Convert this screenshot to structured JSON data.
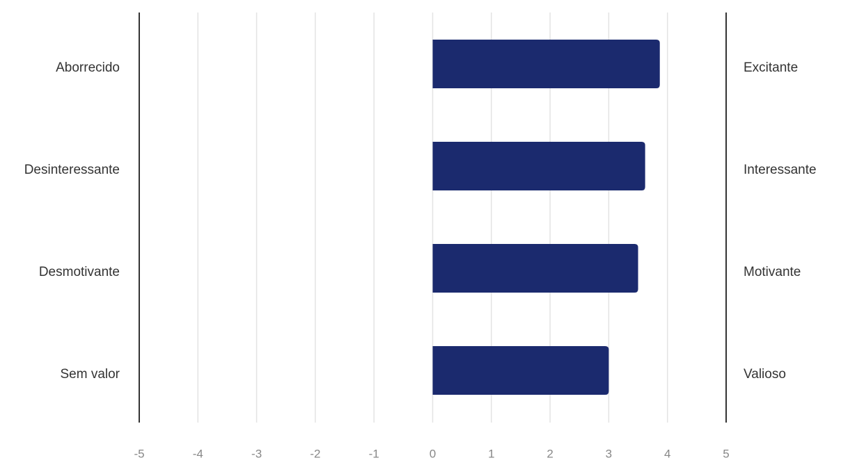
{
  "chart_data": {
    "type": "bar",
    "orientation": "horizontal",
    "categories_left": [
      "Aborrecido",
      "Desinteressante",
      "Desmotivante",
      "Sem valor"
    ],
    "categories_right": [
      "Excitante",
      "Interessante",
      "Motivante",
      "Valioso"
    ],
    "values": [
      3.87,
      3.62,
      3.5,
      3.0
    ],
    "xlim": [
      -5,
      5
    ],
    "xticks": [
      "-5",
      "-4",
      "-3",
      "-2",
      "-1",
      "0",
      "1",
      "2",
      "3",
      "4",
      "5"
    ],
    "grid": true,
    "title": "",
    "xlabel": "",
    "ylabel": "",
    "bar_color": "#1b2a6e",
    "grid_color": "#e3e3e3",
    "axis_color": "#333333"
  }
}
